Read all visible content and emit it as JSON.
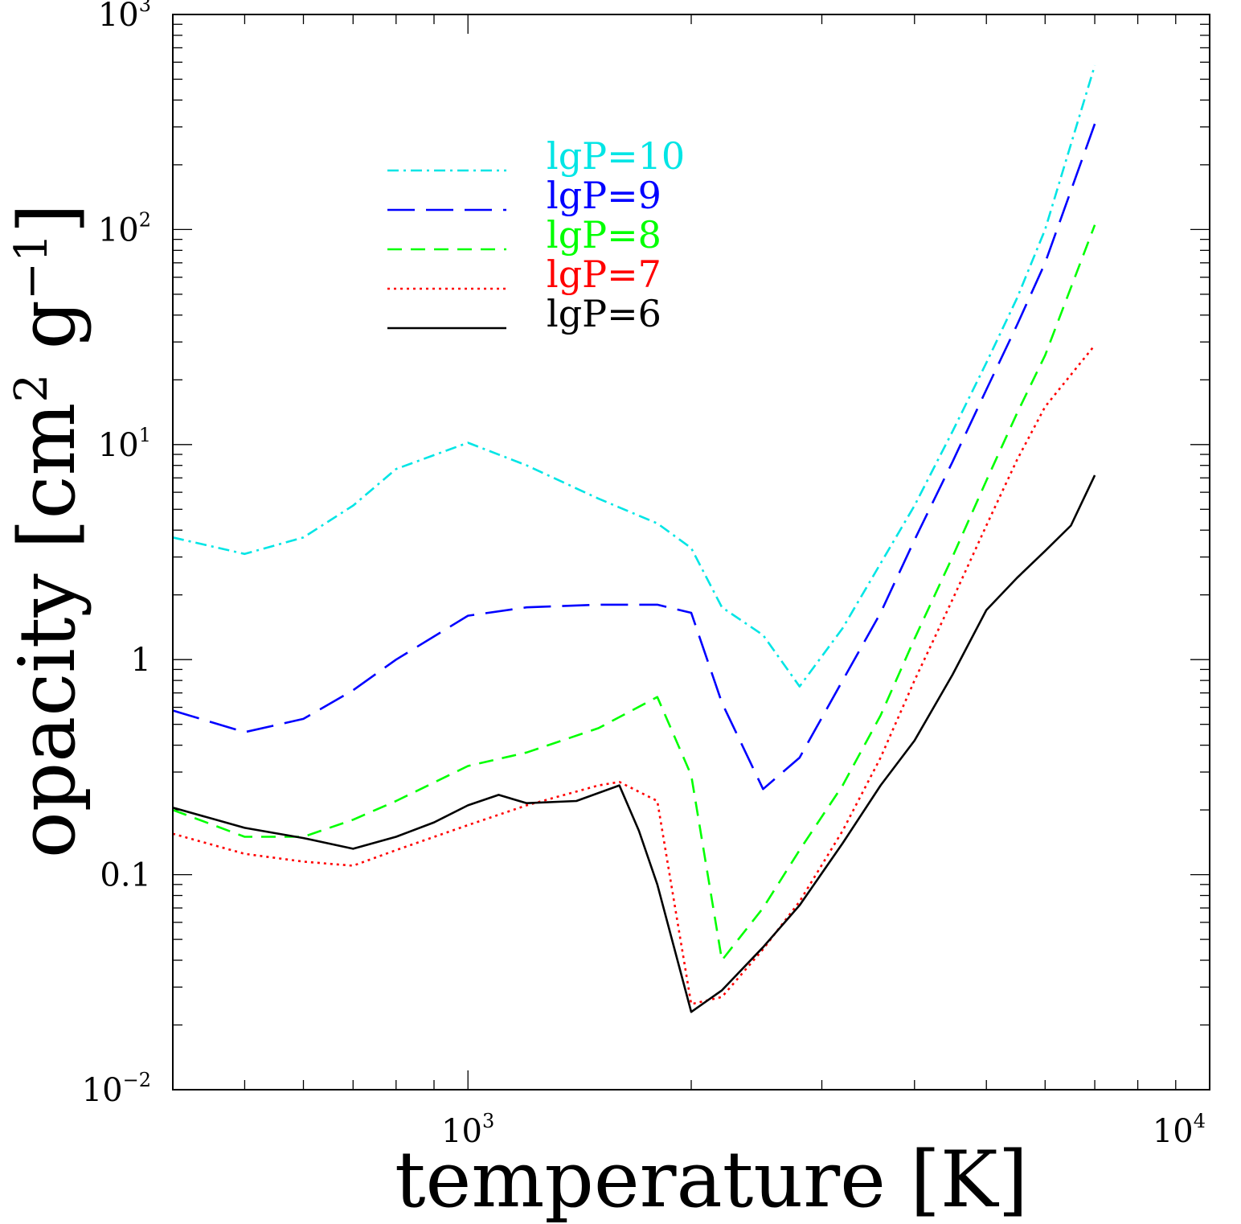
{
  "chart_data": {
    "type": "line",
    "xscale": "log",
    "yscale": "log",
    "xlim": [
      400,
      10000
    ],
    "ylim": [
      0.01,
      1000
    ],
    "xlabel": "temperature [K]",
    "ylabel": "opacity [cm2 g-1]",
    "ylabel_parts": {
      "main": "opacity [cm",
      "sup1": "2",
      "mid": " g",
      "sup2": "−1",
      "end": "]"
    },
    "xticks": [
      {
        "value": 1000,
        "base": "10",
        "exp": "3"
      },
      {
        "value": 10000,
        "base": "10",
        "exp": "4"
      }
    ],
    "yticks": [
      {
        "value": 0.01,
        "base": "10",
        "exp": "−2"
      },
      {
        "value": 0.1,
        "base": "0.1",
        "exp": ""
      },
      {
        "value": 1,
        "base": "1",
        "exp": ""
      },
      {
        "value": 10,
        "base": "10",
        "exp": "1"
      },
      {
        "value": 100,
        "base": "10",
        "exp": "2"
      },
      {
        "value": 1000,
        "base": "10",
        "exp": "3"
      }
    ],
    "legend_position": "upper-left",
    "series": [
      {
        "name": "lgP=10",
        "color": "#00e5e5",
        "dash": "dashdot",
        "x": [
          400,
          500,
          600,
          700,
          800,
          1000,
          1200,
          1500,
          1800,
          2000,
          2200,
          2500,
          2800,
          3200,
          3600,
          4000,
          4500,
          5000,
          5500,
          6000,
          7000
        ],
        "y": [
          3.7,
          3.1,
          3.7,
          5.2,
          7.7,
          10.2,
          8.0,
          5.6,
          4.3,
          3.3,
          1.75,
          1.3,
          0.75,
          1.4,
          2.8,
          5.2,
          11.5,
          24,
          48,
          100,
          580
        ]
      },
      {
        "name": "lgP=9",
        "color": "#0000ff",
        "dash": "longdash",
        "x": [
          400,
          500,
          600,
          700,
          800,
          1000,
          1200,
          1500,
          1800,
          2000,
          2200,
          2500,
          2800,
          3200,
          3600,
          4000,
          4500,
          5000,
          5500,
          6000,
          7000
        ],
        "y": [
          0.58,
          0.46,
          0.53,
          0.72,
          1.0,
          1.6,
          1.75,
          1.8,
          1.8,
          1.65,
          0.63,
          0.25,
          0.35,
          0.8,
          1.65,
          3.6,
          8.3,
          18,
          36,
          70,
          310
        ]
      },
      {
        "name": "lgP=8",
        "color": "#00ff00",
        "dash": "dash",
        "x": [
          400,
          500,
          600,
          700,
          800,
          1000,
          1200,
          1500,
          1800,
          2000,
          2200,
          2500,
          2800,
          3200,
          3600,
          4000,
          4500,
          5000,
          5500,
          6000,
          7000
        ],
        "y": [
          0.2,
          0.15,
          0.15,
          0.18,
          0.22,
          0.32,
          0.37,
          0.48,
          0.67,
          0.29,
          0.04,
          0.07,
          0.13,
          0.26,
          0.55,
          1.25,
          3.0,
          6.8,
          14,
          26,
          105
        ]
      },
      {
        "name": "lgP=7",
        "color": "#ff0000",
        "dash": "dot",
        "x": [
          400,
          500,
          600,
          700,
          800,
          1000,
          1200,
          1500,
          1600,
          1800,
          2000,
          2200,
          2500,
          2800,
          3200,
          3600,
          4000,
          4500,
          5000,
          5500,
          6000,
          7000
        ],
        "y": [
          0.155,
          0.125,
          0.115,
          0.11,
          0.13,
          0.17,
          0.21,
          0.26,
          0.27,
          0.22,
          0.025,
          0.027,
          0.045,
          0.075,
          0.16,
          0.35,
          0.8,
          1.9,
          4.2,
          8.5,
          15,
          29
        ]
      },
      {
        "name": "lgP=6",
        "color": "#000000",
        "dash": "solid",
        "x": [
          400,
          500,
          600,
          700,
          800,
          900,
          1000,
          1100,
          1200,
          1400,
          1600,
          1700,
          1800,
          2000,
          2200,
          2500,
          2800,
          3200,
          3600,
          4000,
          4500,
          5000,
          5500,
          6000,
          6500,
          7000
        ],
        "y": [
          0.205,
          0.165,
          0.148,
          0.132,
          0.15,
          0.175,
          0.21,
          0.235,
          0.215,
          0.22,
          0.26,
          0.16,
          0.09,
          0.023,
          0.029,
          0.046,
          0.072,
          0.14,
          0.26,
          0.42,
          0.85,
          1.7,
          2.4,
          3.2,
          4.2,
          7.2
        ]
      }
    ]
  }
}
